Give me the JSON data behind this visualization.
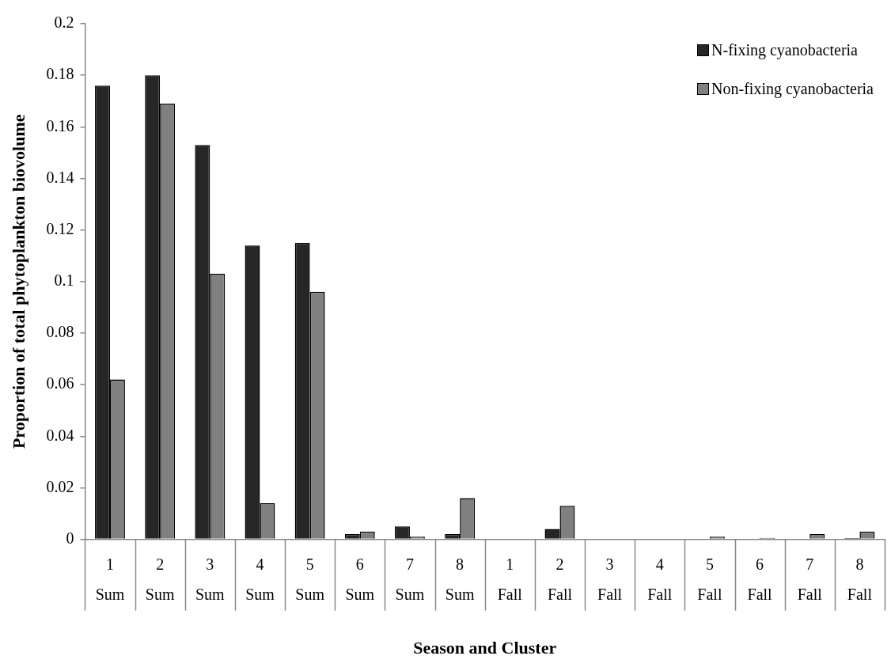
{
  "chart_data": {
    "type": "bar",
    "xlabel": "Season and Cluster",
    "ylabel": "Proportion of total phytoplankton biovolume",
    "categories": [
      "1\nSum",
      "2\nSum",
      "3\nSum",
      "4\nSum",
      "5\nSum",
      "6\nSum",
      "7\nSum",
      "8\nSum",
      "1\nFall",
      "2\nFall",
      "3\nFall",
      "4\nFall",
      "5\nFall",
      "6\nFall",
      "7\nFall",
      "8\nFall"
    ],
    "series": [
      {
        "name": "N-fixing cyanobacteria",
        "color": "#262626",
        "values": [
          0.176,
          0.18,
          0.153,
          0.114,
          0.115,
          0.002,
          0.005,
          0.002,
          null,
          0.004,
          null,
          null,
          null,
          null,
          null,
          0.0005
        ]
      },
      {
        "name": "Non-fixing cyanobacteria",
        "color": "#808080",
        "values": [
          0.062,
          0.169,
          0.103,
          0.014,
          0.096,
          0.003,
          0.001,
          0.016,
          null,
          0.013,
          null,
          null,
          0.001,
          0.0006,
          0.002,
          0.003
        ]
      }
    ],
    "ylim": [
      0,
      0.2
    ],
    "yticks": [
      0,
      0.02,
      0.04,
      0.06,
      0.08,
      0.1,
      0.12,
      0.14,
      0.16,
      0.18,
      0.2
    ],
    "grid": false,
    "legend": "top right"
  }
}
